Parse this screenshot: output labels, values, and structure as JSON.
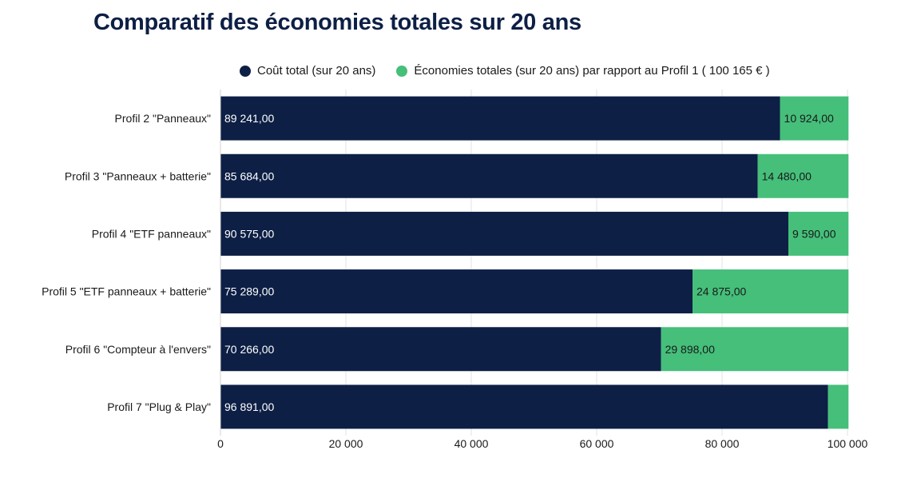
{
  "chart_data": {
    "type": "bar",
    "orientation": "horizontal",
    "stacked": true,
    "title": "Comparatif des économies totales sur 20 ans",
    "categories": [
      "Profil 2 \"Panneaux\"",
      "Profil 3 \"Panneaux + batterie\"",
      "Profil 4 \"ETF panneaux\"",
      "Profil 5 \"ETF panneaux + batterie\"",
      "Profil 6 \"Compteur à l'envers\"",
      "Profil 7 \"Plug & Play\""
    ],
    "series": [
      {
        "name": "Coût total (sur 20 ans)",
        "color": "#0d1f45",
        "values": [
          89241,
          85684,
          90575,
          75289,
          70266,
          96891
        ],
        "labels": [
          "89 241,00",
          "85 684,00",
          "90 575,00",
          "75 289,00",
          "70 266,00",
          "96 891,00"
        ]
      },
      {
        "name": "Économies totales (sur 20 ans) par rapport au Profil 1 ( 100 165 € )",
        "color": "#45bf7a",
        "values": [
          10924,
          14480,
          9590,
          24875,
          29898,
          3274
        ],
        "labels": [
          "10 924,00",
          "14 480,00",
          "9 590,00",
          "24 875,00",
          "29 898,00",
          ""
        ]
      }
    ],
    "xlim": [
      0,
      100000
    ],
    "xticks": [
      0,
      20000,
      40000,
      60000,
      80000,
      100000
    ],
    "xtick_labels": [
      "0",
      "20 000",
      "40 000",
      "60 000",
      "80 000",
      "100 000"
    ],
    "xlabel": "",
    "ylabel": "",
    "grid": "vertical",
    "legend_position": "top"
  }
}
